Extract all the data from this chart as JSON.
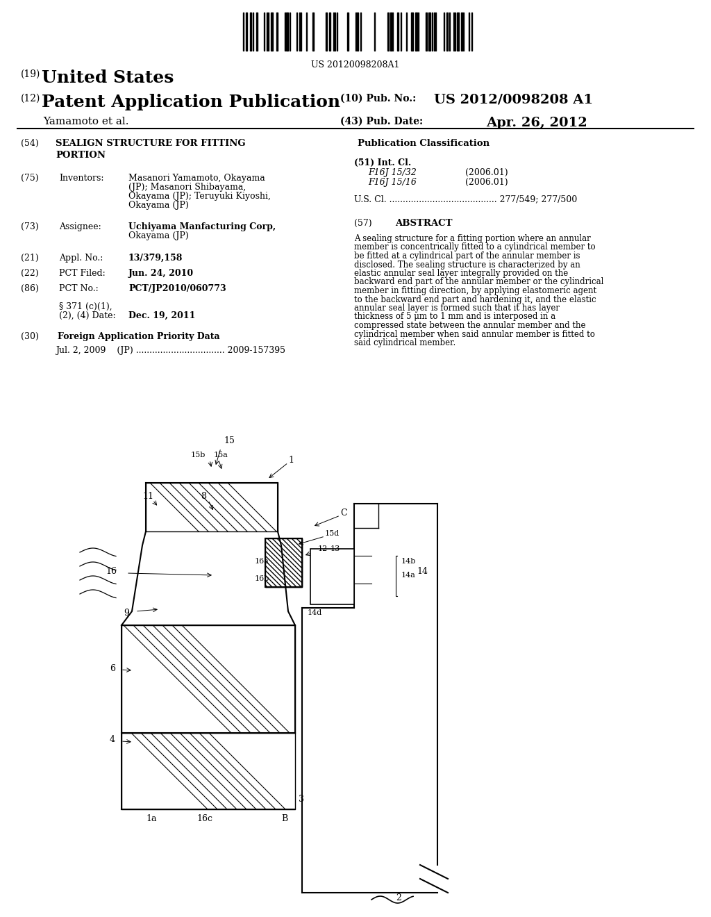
{
  "background_color": "#ffffff",
  "barcode_text": "US 20120098208A1",
  "header": {
    "country_num": "(19)",
    "country": "United States",
    "type_num": "(12)",
    "type": "Patent Application Publication",
    "pub_num_label": "(10) Pub. No.:",
    "pub_num": "US 2012/0098208 A1",
    "inventor": "Yamamoto et al.",
    "pub_date_label": "(43) Pub. Date:",
    "pub_date": "Apr. 26, 2012"
  },
  "right_col_class": {
    "title": "Publication Classification",
    "int_cl_label": "(51) Int. Cl.",
    "int_cl_entries": [
      {
        "code": "F16J 15/32",
        "date": "(2006.01)"
      },
      {
        "code": "F16J 15/16",
        "date": "(2006.01)"
      }
    ],
    "us_cl_text": "U.S. Cl. ........................................ 277/549; 277/500"
  },
  "abstract": {
    "tag": "(57)",
    "title": "ABSTRACT",
    "text": "A sealing structure for a fitting portion where an annular member is concentrically fitted to a cylindrical member to be fitted at a cylindrical part of the annular member is disclosed. The sealing structure is characterized by an elastic annular seal layer integrally provided on the backward end part of the annular member or the cylindrical member in fitting direction, by applying elastomeric agent to the backward end part and hardening it, and the elastic annular seal layer is formed such that it has layer thickness of 5 μm to 1 mm and is interposed in a compressed state between the annular member and the cylindrical member when said annular member is fitted to said cylindrical member."
  }
}
